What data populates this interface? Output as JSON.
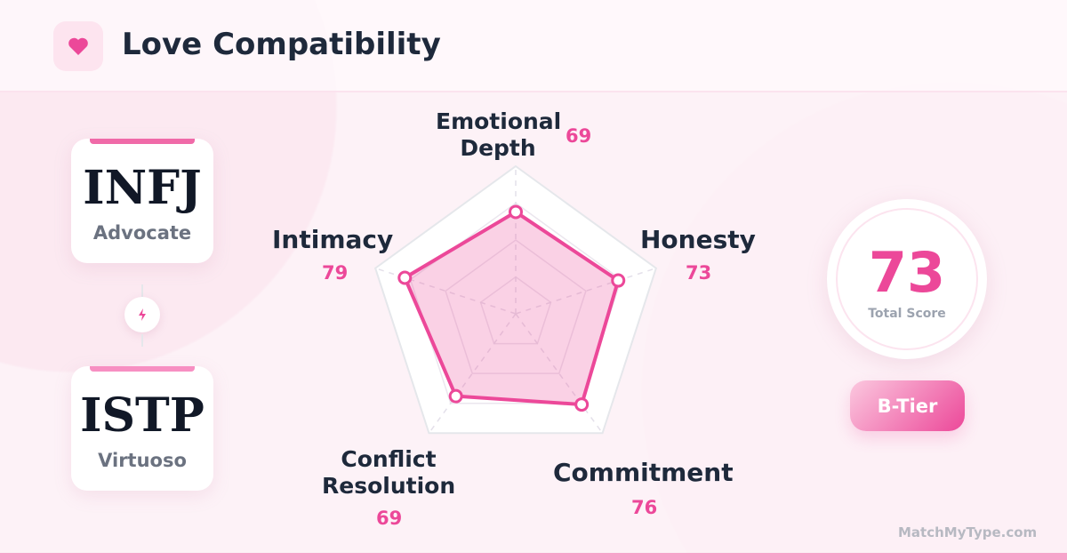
{
  "header": {
    "title": "Love Compatibility",
    "icon": "heart-icon"
  },
  "types": [
    {
      "code": "INFJ",
      "name": "Advocate"
    },
    {
      "code": "ISTP",
      "name": "Virtuoso"
    }
  ],
  "connector_icon": "lightning-icon",
  "colors": {
    "accent": "#ec4899",
    "text": "#1e293b",
    "muted": "#6b7280"
  },
  "chart_data": {
    "type": "radar",
    "range": [
      0,
      100
    ],
    "axes": [
      {
        "label": "Emotional Depth",
        "value": 69
      },
      {
        "label": "Honesty",
        "value": 73
      },
      {
        "label": "Commitment",
        "value": 76
      },
      {
        "label": "Conflict Resolution",
        "value": 69
      },
      {
        "label": "Intimacy",
        "value": 79
      }
    ],
    "grid_levels": [
      25,
      50,
      75,
      100
    ]
  },
  "labels": {
    "l0a": "Emotional",
    "l0b": "Depth",
    "l1": "Honesty",
    "l2": "Commitment",
    "l3a": "Conflict",
    "l3b": "Resolution",
    "l4": "Intimacy",
    "v0": "69",
    "v1": "73",
    "v2": "76",
    "v3": "69",
    "v4": "79"
  },
  "score": {
    "value": "73",
    "caption": "Total Score",
    "tier": "B-Tier"
  },
  "brand": "MatchMyType.com"
}
